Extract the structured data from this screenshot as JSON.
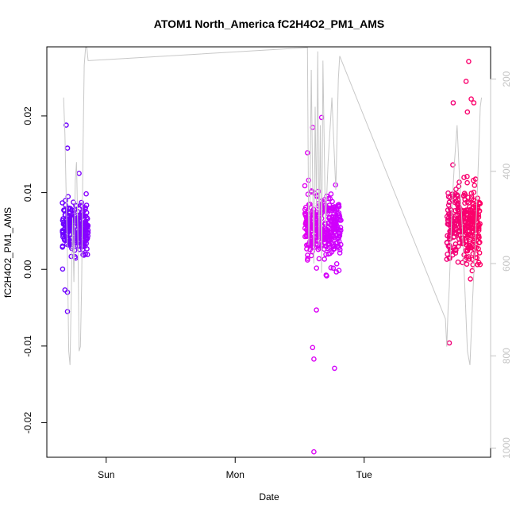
{
  "chart_data": {
    "type": "scatter",
    "title": "ATOM1 North_America fC2H4O2_PM1_AMS",
    "xlabel": "Date",
    "ylabel": "fC2H4O2_PM1_AMS",
    "x_ticks": [
      "Sun",
      "Mon",
      "Tue"
    ],
    "y_ticks": [
      "-0.02",
      "-0.01",
      "0.00",
      "0.01",
      "0.02"
    ],
    "y2_ticks": [
      "200",
      "400",
      "600",
      "800",
      "1000"
    ],
    "ylim": [
      -0.0245,
      0.029
    ],
    "y2lim": [
      1020,
      130
    ],
    "x_tick_values_days": [
      1,
      2,
      3
    ],
    "xlim_days": [
      0.54,
      3.98
    ],
    "colors": {
      "cluster1": "#6a00ff",
      "cluster2": "#e000f0",
      "cluster3": "#f0007a",
      "altitude_line": "#c8c8c8",
      "axis": "#000000",
      "right_axis": "#c4c4c4"
    },
    "clusters": [
      {
        "day_range": [
          0.66,
          0.86
        ],
        "center": 0.0054,
        "spread": 0.0028,
        "n": 260,
        "outliers": [
          [
            0.69,
            0.0188
          ],
          [
            0.7,
            0.0158
          ],
          [
            0.68,
            -0.0027
          ],
          [
            0.7,
            -0.0055
          ],
          [
            0.79,
            0.0125
          ],
          [
            0.7,
            -0.003
          ],
          [
            0.82,
            0.0019
          ]
        ]
      },
      {
        "day_range": [
          2.54,
          2.82
        ],
        "center": 0.0052,
        "spread": 0.0038,
        "n": 330,
        "outliers": [
          [
            2.61,
            -0.0238
          ],
          [
            2.6,
            -0.0102
          ],
          [
            2.61,
            -0.0117
          ],
          [
            2.67,
            0.0198
          ],
          [
            2.77,
            -0.0129
          ],
          [
            2.56,
            0.0152
          ],
          [
            2.6,
            0.0185
          ],
          [
            2.63,
            -0.0053
          ]
        ]
      },
      {
        "day_range": [
          3.64,
          3.9
        ],
        "center": 0.0058,
        "spread": 0.0045,
        "n": 330,
        "outliers": [
          [
            3.81,
            0.0271
          ],
          [
            3.79,
            0.0245
          ],
          [
            3.83,
            0.0222
          ],
          [
            3.8,
            0.0205
          ],
          [
            3.66,
            -0.0096
          ],
          [
            3.69,
            0.0217
          ],
          [
            3.85,
            0.0217
          ]
        ]
      }
    ],
    "altitude_line_path": [
      [
        0.67,
        240
      ],
      [
        0.68,
        320
      ],
      [
        0.7,
        590
      ],
      [
        0.71,
        790
      ],
      [
        0.72,
        820
      ],
      [
        0.74,
        500
      ],
      [
        0.75,
        640
      ],
      [
        0.76,
        420
      ],
      [
        0.77,
        380
      ],
      [
        0.78,
        520
      ],
      [
        0.79,
        790
      ],
      [
        0.8,
        780
      ],
      [
        0.81,
        640
      ],
      [
        0.82,
        360
      ],
      [
        0.83,
        170
      ],
      [
        0.84,
        120
      ],
      [
        0.85,
        125
      ],
      [
        0.86,
        160
      ],
      [
        0.865,
        160
      ],
      [
        2.55,
        120
      ],
      [
        2.56,
        120
      ],
      [
        2.57,
        560
      ],
      [
        2.58,
        460
      ],
      [
        2.59,
        180
      ],
      [
        2.6,
        420
      ],
      [
        2.61,
        600
      ],
      [
        2.62,
        260
      ],
      [
        2.63,
        480
      ],
      [
        2.64,
        140
      ],
      [
        2.65,
        560
      ],
      [
        2.66,
        300
      ],
      [
        2.67,
        620
      ],
      [
        2.68,
        160
      ],
      [
        2.7,
        520
      ],
      [
        2.72,
        380
      ],
      [
        2.75,
        240
      ],
      [
        2.78,
        440
      ],
      [
        2.8,
        200
      ],
      [
        2.81,
        150
      ],
      [
        3.63,
        720
      ],
      [
        3.64,
        780
      ],
      [
        3.65,
        700
      ],
      [
        3.66,
        650
      ],
      [
        3.68,
        480
      ],
      [
        3.7,
        380
      ],
      [
        3.72,
        300
      ],
      [
        3.74,
        420
      ],
      [
        3.76,
        520
      ],
      [
        3.78,
        650
      ],
      [
        3.8,
        790
      ],
      [
        3.82,
        820
      ],
      [
        3.84,
        680
      ],
      [
        3.86,
        560
      ],
      [
        3.88,
        420
      ],
      [
        3.9,
        260
      ],
      [
        3.91,
        240
      ]
    ]
  }
}
